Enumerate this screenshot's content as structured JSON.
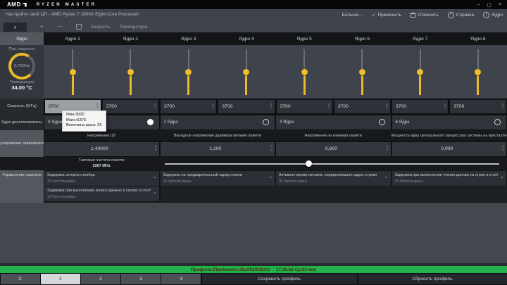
{
  "window": {
    "brand_amd": "AMD",
    "brand_ryzen": "RYZEN MASTER",
    "controls": {
      "minimize": "–",
      "maximize": "▢",
      "close": "×"
    }
  },
  "header": {
    "subtitle": "Настройте свой ЦП - AMD Ryzen 7 1800X Eight-Core Processor",
    "more": "Больше...",
    "apply": "Применить",
    "discard": "Отменить",
    "help": "Справка",
    "core_menu": "Ядро"
  },
  "toolbar": {
    "expand": "›",
    "plus": "+",
    "minus": "—",
    "view_labels": [
      "Скорость",
      "Температура"
    ]
  },
  "cores": {
    "row_label": "Ядро",
    "columns": [
      "Ядро 1",
      "Ядро 2",
      "Ядро 3",
      "Ядро 4",
      "Ядро 5",
      "Ядро 6",
      "Ядро 7",
      "Ядро 8"
    ],
    "slider_percent": 50
  },
  "gauge": {
    "peak_label": "Пик. скорость",
    "peak_value": "3.70GHz",
    "temp_label": "Температура",
    "temp_value": "34.00 °C"
  },
  "speed": {
    "row_label": "Скорость (МГц)",
    "values": [
      "3700",
      "3700",
      "3700",
      "3700",
      "3700",
      "3700",
      "3700",
      "3700"
    ],
    "active_index": 0,
    "tooltip": {
      "min": "Мин:3000",
      "max": "Макс:6375",
      "step": "Величина шага: 25"
    }
  },
  "disabled_cores": {
    "row_label": "Ядра деактивированы",
    "options": [
      {
        "label": "0 Ядра",
        "selected": true
      },
      {
        "label": "2 Ядра",
        "selected": false
      },
      {
        "label": "4 Ядра",
        "selected": false
      },
      {
        "label": "6 Ядра",
        "selected": false
      }
    ]
  },
  "voltage": {
    "row_label": "Регулирование напряжения (...",
    "columns": [
      {
        "header": "Напряжение ЦП",
        "value": "1,40000"
      },
      {
        "header": "Выходное напряжение драйвера питания памяти",
        "value": "1,200"
      },
      {
        "header": "Напряжение на клеммах памяти",
        "value": "0,600"
      },
      {
        "header": "Мощность ядер центрального процессора системы на кристалле",
        "value": "0,900"
      }
    ]
  },
  "memory": {
    "row_label": "Управление памятью",
    "clock_label": "Тактовая частота памяти",
    "clock_value": "1067 MHz",
    "slider_percent": 43,
    "timings_row1": [
      {
        "label": "Задержка сигнала столбца",
        "value": "15 Частота шины"
      },
      {
        "label": "Задержка на предварительный заряд строки",
        "value": "15 Частота шины"
      },
      {
        "label": "Активное время сигнала, определяющего адрес строки",
        "value": "35 Частота шины"
      },
      {
        "label": "Задержка при выполнении чтения данных из строк и столбцов",
        "value": "15 Частота шины"
      }
    ],
    "timings_row2": [
      {
        "label": "Задержка при выполнении записи данных в строки и столбцы",
        "value": "15 Частота шины"
      }
    ]
  },
  "statusbar": {
    "message": "Профиль1Применить:ВЫПОЛНЕНО",
    "timestamp": "17:26:56 Ср,03 янв"
  },
  "footer": {
    "tabs": [
      "C",
      "1",
      "2",
      "3",
      "4"
    ],
    "active_tab_index": 1,
    "save_button": "Сохранить профиль",
    "reset_button": "Сбросить профиль"
  },
  "colors": {
    "accent_yellow": "#ecb92a",
    "status_green": "#21b24b",
    "active_spinner_bg": "#9b9ea3"
  }
}
